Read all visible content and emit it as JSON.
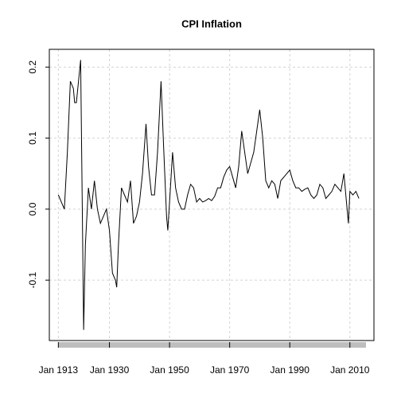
{
  "chart_data": {
    "type": "line",
    "title": "CPI Inflation",
    "x": [
      "Jan 1913",
      "Jan 1914",
      "Jan 1915",
      "Jan 1916",
      "Jan 1917",
      "Jan 1918",
      "Jun 1918",
      "Jan 1919",
      "Jun 1920",
      "Jun 1921",
      "Jan 1922",
      "Jan 1923",
      "Jan 1924",
      "Jan 1925",
      "Jan 1926",
      "Jan 1927",
      "Jan 1928",
      "Jan 1929",
      "Jan 1930",
      "Jan 1931",
      "Jan 1932",
      "Jun 1932",
      "Jan 1933",
      "Jan 1934",
      "Jan 1935",
      "Jan 1936",
      "Jan 1937",
      "Jan 1938",
      "Jan 1939",
      "Jan 1940",
      "Jan 1941",
      "Mar 1942",
      "Jan 1943",
      "Jan 1944",
      "Jan 1945",
      "Jan 1946",
      "Mar 1947",
      "Jan 1948",
      "Jan 1949",
      "Jun 1949",
      "Jan 1950",
      "Jan 1951",
      "Jan 1952",
      "Jan 1953",
      "Jan 1954",
      "Jan 1955",
      "Jan 1956",
      "Jan 1957",
      "Jan 1958",
      "Jan 1959",
      "Jan 1960",
      "Jan 1961",
      "Jan 1962",
      "Jan 1963",
      "Jan 1964",
      "Jan 1965",
      "Jan 1966",
      "Jan 1967",
      "Jan 1968",
      "Jan 1969",
      "Jan 1970",
      "Jan 1971",
      "Jan 1972",
      "Jan 1973",
      "Jan 1974",
      "Jan 1975",
      "Jan 1976",
      "Jan 1977",
      "Jan 1978",
      "Jan 1979",
      "Jan 1980",
      "Jan 1981",
      "Jan 1982",
      "Jan 1983",
      "Jan 1984",
      "Jan 1985",
      "Jan 1986",
      "Jan 1987",
      "Jan 1988",
      "Jan 1989",
      "Jan 1990",
      "Jan 1991",
      "Jan 1992",
      "Jan 1993",
      "Jan 1994",
      "Jan 1995",
      "Jan 1996",
      "Jan 1997",
      "Jan 1998",
      "Jan 1999",
      "Jan 2000",
      "Jan 2001",
      "Jan 2002",
      "Jan 2003",
      "Jan 2004",
      "Jan 2005",
      "Jan 2006",
      "Jan 2007",
      "Jan 2008",
      "Jul 2009",
      "Jan 2010",
      "Jan 2011",
      "Jan 2012",
      "Jan 2013"
    ],
    "values": [
      0.02,
      0.01,
      0.0,
      0.08,
      0.18,
      0.17,
      0.15,
      0.15,
      0.21,
      -0.17,
      -0.05,
      0.03,
      0.0,
      0.04,
      0.0,
      -0.02,
      -0.01,
      0.0,
      -0.03,
      -0.09,
      -0.1,
      -0.11,
      -0.05,
      0.03,
      0.02,
      0.01,
      0.04,
      -0.02,
      -0.01,
      0.01,
      0.05,
      0.12,
      0.06,
      0.02,
      0.02,
      0.08,
      0.18,
      0.09,
      -0.01,
      -0.03,
      0.01,
      0.08,
      0.03,
      0.01,
      0.0,
      0.0,
      0.02,
      0.035,
      0.03,
      0.01,
      0.015,
      0.01,
      0.012,
      0.015,
      0.012,
      0.018,
      0.03,
      0.03,
      0.045,
      0.055,
      0.06,
      0.045,
      0.03,
      0.06,
      0.11,
      0.08,
      0.05,
      0.065,
      0.08,
      0.11,
      0.14,
      0.1,
      0.04,
      0.03,
      0.04,
      0.035,
      0.015,
      0.04,
      0.045,
      0.05,
      0.055,
      0.04,
      0.03,
      0.03,
      0.025,
      0.028,
      0.03,
      0.02,
      0.015,
      0.02,
      0.035,
      0.03,
      0.015,
      0.02,
      0.025,
      0.035,
      0.03,
      0.025,
      0.05,
      -0.02,
      0.025,
      0.02,
      0.025,
      0.015
    ],
    "color": "#000000",
    "xlim": [
      "Jan 1910",
      "Jan 2018"
    ],
    "xticks": [
      "Jan 1913",
      "Jan 1930",
      "Jan 1950",
      "Jan 1970",
      "Jan 1990",
      "Jan 2010"
    ],
    "ylim": [
      -0.185,
      0.225
    ],
    "yticks": [
      -0.1,
      {
        "value": 0,
        "label": "0.0"
      },
      0.1,
      0.2
    ],
    "grid": true
  }
}
